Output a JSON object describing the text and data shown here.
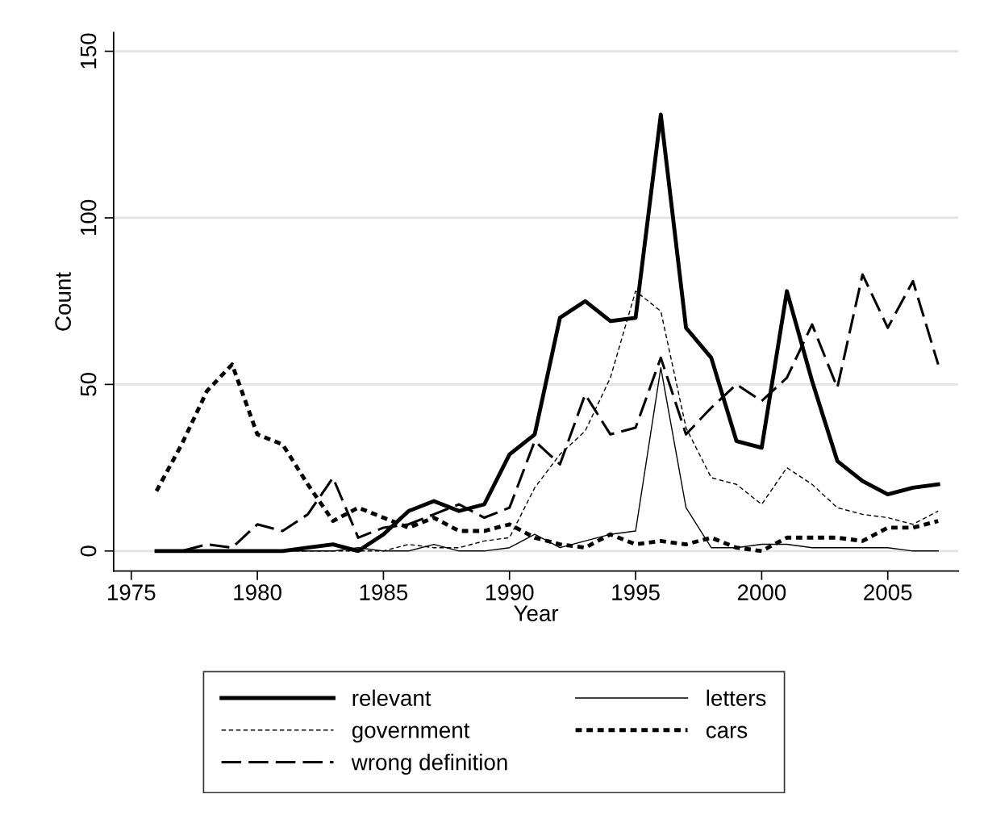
{
  "chart_data": {
    "type": "line",
    "xlabel": "Year",
    "ylabel": "Count",
    "x": [
      1976,
      1977,
      1978,
      1979,
      1980,
      1981,
      1982,
      1983,
      1984,
      1985,
      1986,
      1987,
      1988,
      1989,
      1990,
      1991,
      1992,
      1993,
      1994,
      1995,
      1996,
      1997,
      1998,
      1999,
      2000,
      2001,
      2002,
      2003,
      2004,
      2005,
      2006,
      2007
    ],
    "xlim": [
      1974.3,
      2007.8
    ],
    "xticks": [
      1975,
      1980,
      1985,
      1990,
      1995,
      2000,
      2005
    ],
    "ylim": [
      -6,
      155.6
    ],
    "yticks": [
      0,
      50,
      100,
      150
    ],
    "grid": "y",
    "legend": "bottom",
    "marker": "none",
    "series": [
      {
        "name": "relevant",
        "color": "#000000",
        "line_style": "solid",
        "values": [
          0,
          0,
          0,
          0,
          0,
          0,
          1,
          2,
          0,
          5,
          12,
          15,
          12,
          14,
          29,
          35,
          70,
          75,
          69,
          70,
          131,
          67,
          58,
          33,
          31,
          78,
          51,
          27,
          21,
          17,
          19,
          20
        ]
      },
      {
        "name": "government",
        "color": "#000000",
        "line_style": "dashed",
        "values": [
          0,
          0,
          0,
          0,
          0,
          0,
          0,
          0,
          0,
          0,
          2,
          1,
          1,
          3,
          4,
          19,
          29,
          36,
          52,
          78,
          72,
          37,
          22,
          20,
          14,
          25,
          20,
          13,
          11,
          10,
          8,
          12
        ]
      },
      {
        "name": "wrong definition",
        "color": "#000000",
        "line_style": "longdash",
        "values": [
          0,
          0,
          2,
          1,
          8,
          6,
          11,
          22,
          4,
          7,
          8,
          11,
          14,
          10,
          13,
          33,
          26,
          47,
          35,
          37,
          58,
          35,
          43,
          50,
          45,
          52,
          68,
          49,
          83,
          67,
          81,
          56
        ]
      },
      {
        "name": "letters",
        "color": "#000000",
        "line_style": "solid",
        "values": [
          0,
          0,
          0,
          0,
          0,
          0,
          0,
          0,
          1,
          0,
          0,
          2,
          0,
          0,
          1,
          5,
          1,
          3,
          5,
          6,
          55,
          13,
          1,
          1,
          2,
          2,
          1,
          1,
          1,
          1,
          0,
          0
        ]
      },
      {
        "name": "cars",
        "color": "#000000",
        "line_style": "dashed",
        "values": [
          18,
          32,
          48,
          56,
          35,
          32,
          20,
          9,
          13,
          10,
          7,
          10,
          6,
          6,
          8,
          4,
          2,
          1,
          5,
          2,
          3,
          2,
          4,
          1,
          0,
          4,
          4,
          4,
          3,
          7,
          7,
          9
        ]
      }
    ]
  }
}
